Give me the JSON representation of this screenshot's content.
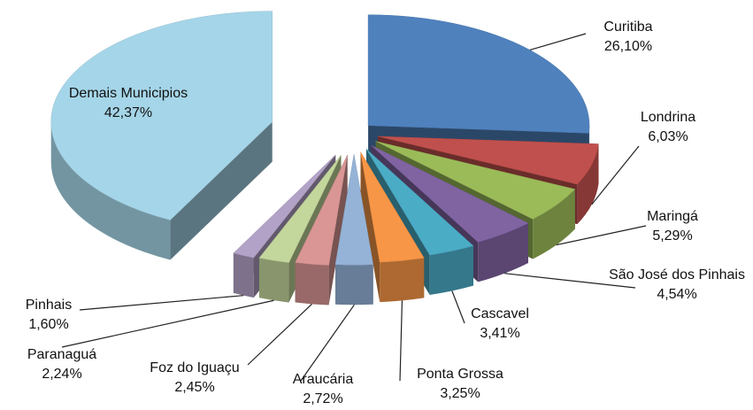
{
  "chart_data": {
    "type": "pie",
    "categories": [
      "Curitiba",
      "Londrina",
      "Maringá",
      "São José dos Pinhais",
      "Cascavel",
      "Ponta Grossa",
      "Araucária",
      "Foz do Iguaçu",
      "Paranaguá",
      "Pinhais",
      "Demais Municipios"
    ],
    "values": [
      26.1,
      6.03,
      5.29,
      4.54,
      3.41,
      3.25,
      2.72,
      2.45,
      2.24,
      1.6,
      42.37
    ],
    "value_labels": [
      "26,10%",
      "6,03%",
      "5,29%",
      "4,54%",
      "3,41%",
      "3,25%",
      "2,72%",
      "2,45%",
      "2,24%",
      "1,60%",
      "42,37%"
    ],
    "colors": [
      "#4f81bd",
      "#c0504d",
      "#9bbb59",
      "#8064a2",
      "#4bacc6",
      "#f79646",
      "#95b3d7",
      "#d99694",
      "#c3d69b",
      "#b3a2c7",
      "#a5d5e8"
    ]
  }
}
